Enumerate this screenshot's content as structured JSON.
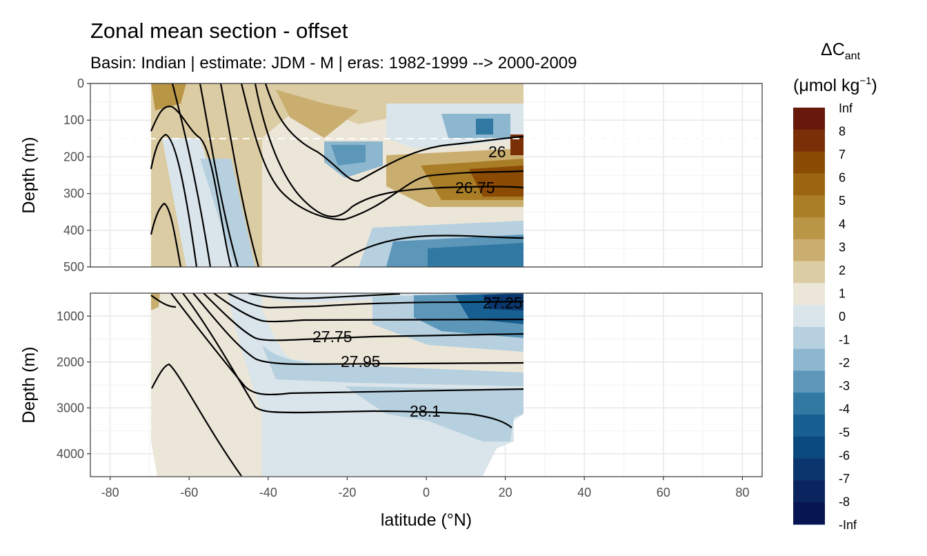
{
  "chart_data": {
    "type": "heatmap",
    "title": "Zonal mean section - offset",
    "subtitle": "Basin: Indian | estimate: JDM - M | eras: 1982-1999 --> 2000-2009",
    "xlabel": "latitude (°N)",
    "ylabel": "Depth (m)",
    "xlim": [
      -85,
      85
    ],
    "x_ticks": [
      "-80",
      "-60",
      "-40",
      "-20",
      "0",
      "20",
      "40",
      "60",
      "80"
    ],
    "data_lat_range": [
      -70,
      24
    ],
    "panels": [
      {
        "name": "upper",
        "ylim": [
          500,
          0
        ],
        "y_ticks": [
          "0",
          "100",
          "200",
          "300",
          "400",
          "500"
        ],
        "reference_depth_dashed": 150,
        "regions": [
          {
            "lat": [
              -70,
              -38
            ],
            "depth": [
              0,
              500
            ],
            "value_range": "0 to 3"
          },
          {
            "lat": [
              -35,
              -12
            ],
            "depth": [
              0,
              150
            ],
            "value_range": "1 to 4"
          },
          {
            "lat": [
              -28,
              -15
            ],
            "depth": [
              150,
              280
            ],
            "value_range": "-1 to -3"
          },
          {
            "lat": [
              0,
              24
            ],
            "depth": [
              150,
              300
            ],
            "value_range": "3 to 8"
          },
          {
            "lat": [
              0,
              24
            ],
            "depth": [
              380,
              500
            ],
            "value_range": "-2 to -5"
          }
        ],
        "isopycnal_labels": [
          "26",
          "26.75"
        ]
      },
      {
        "name": "lower",
        "ylim": [
          4500,
          500
        ],
        "y_ticks": [
          "1000",
          "2000",
          "3000",
          "4000"
        ],
        "regions": [
          {
            "lat": [
              -70,
              -40
            ],
            "depth": [
              500,
              4500
            ],
            "value_range": "0 to 1"
          },
          {
            "lat": [
              -40,
              24
            ],
            "depth": [
              500,
              1500
            ],
            "value_range": "-1 to -6"
          },
          {
            "lat": [
              -40,
              24
            ],
            "depth": [
              2200,
              4000
            ],
            "value_range": "0 to -2"
          }
        ],
        "isopycnal_labels": [
          "27.25",
          "27.75",
          "27.95",
          "28.1"
        ]
      }
    ],
    "legend": {
      "title": "ΔC",
      "title_sub": "ant",
      "unit_open": "(μmol kg",
      "unit_sup": "−1",
      "unit_close": ")",
      "position": "right",
      "labels": [
        "Inf",
        "8",
        "7",
        "6",
        "5",
        "4",
        "3",
        "2",
        "1",
        "0",
        "-1",
        "-2",
        "-3",
        "-4",
        "-5",
        "-6",
        "-7",
        "-8",
        "-Inf"
      ],
      "colors": [
        "#67190b",
        "#7b2f07",
        "#8c4b05",
        "#9b6511",
        "#aa7e27",
        "#b99546",
        "#caae6f",
        "#dccca3",
        "#ece6d9",
        "#d9e5ea",
        "#b6d0df",
        "#8db6cf",
        "#5c97ba",
        "#3178a3",
        "#165f90",
        "#0a4a7f",
        "#0b366d",
        "#0a2460",
        "#071652"
      ]
    },
    "grid": true
  }
}
